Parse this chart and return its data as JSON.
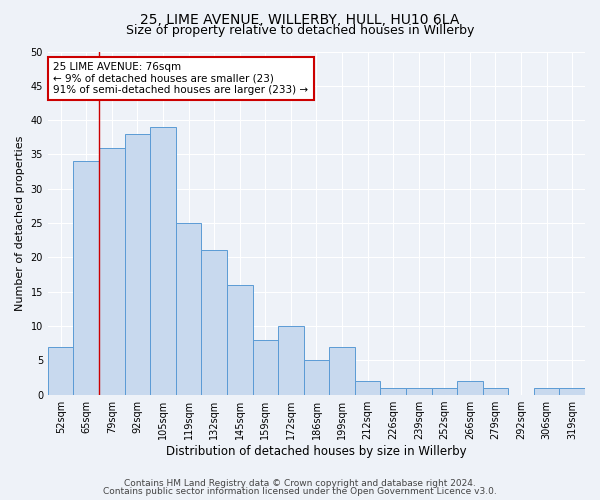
{
  "title_line1": "25, LIME AVENUE, WILLERBY, HULL, HU10 6LA",
  "title_line2": "Size of property relative to detached houses in Willerby",
  "xlabel": "Distribution of detached houses by size in Willerby",
  "ylabel": "Number of detached properties",
  "categories": [
    "52sqm",
    "65sqm",
    "79sqm",
    "92sqm",
    "105sqm",
    "119sqm",
    "132sqm",
    "145sqm",
    "159sqm",
    "172sqm",
    "186sqm",
    "199sqm",
    "212sqm",
    "226sqm",
    "239sqm",
    "252sqm",
    "266sqm",
    "279sqm",
    "292sqm",
    "306sqm",
    "319sqm"
  ],
  "values": [
    7,
    34,
    36,
    38,
    39,
    25,
    21,
    16,
    8,
    10,
    5,
    7,
    2,
    1,
    1,
    1,
    2,
    1,
    0,
    1,
    1
  ],
  "bar_color": "#c8d9ee",
  "bar_edge_color": "#5b9bd5",
  "red_line_x": 1.5,
  "ylim": [
    0,
    50
  ],
  "yticks": [
    0,
    5,
    10,
    15,
    20,
    25,
    30,
    35,
    40,
    45,
    50
  ],
  "annotation_text": "25 LIME AVENUE: 76sqm\n← 9% of detached houses are smaller (23)\n91% of semi-detached houses are larger (233) →",
  "annotation_box_color": "#ffffff",
  "annotation_box_edge": "#cc0000",
  "footer_line1": "Contains HM Land Registry data © Crown copyright and database right 2024.",
  "footer_line2": "Contains public sector information licensed under the Open Government Licence v3.0.",
  "background_color": "#eef2f8",
  "grid_color": "#ffffff",
  "title1_fontsize": 10,
  "title2_fontsize": 9,
  "ylabel_fontsize": 8,
  "xlabel_fontsize": 8.5,
  "tick_fontsize": 7,
  "annot_fontsize": 7.5,
  "footer_fontsize": 6.5
}
